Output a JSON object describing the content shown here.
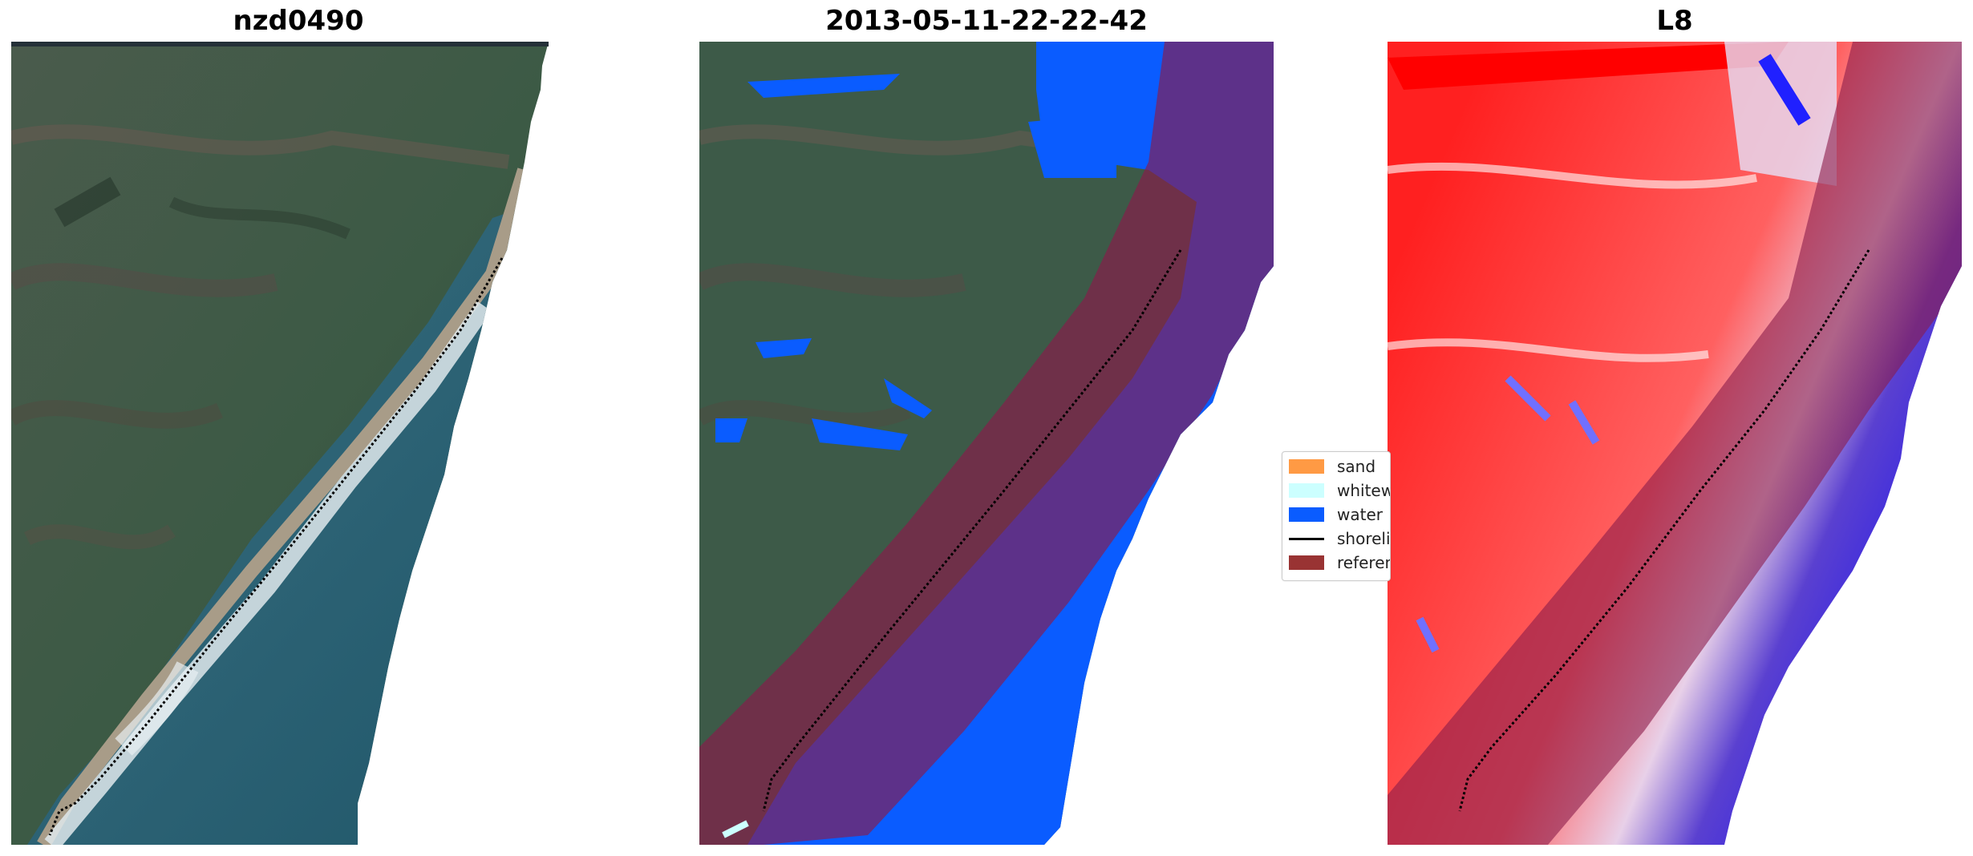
{
  "panels": [
    {
      "title": "nzd0490",
      "image": "satellite-rgb-image"
    },
    {
      "title": "2013-05-11-22-22-42",
      "image": "classified-image"
    },
    {
      "title": "L8",
      "image": "mndwi-image"
    }
  ],
  "legend": {
    "items": [
      {
        "label": "sand",
        "color": "#ff9a44",
        "kind": "patch"
      },
      {
        "label": "whitewater",
        "color": "#ccffff",
        "kind": "patch"
      },
      {
        "label": "water",
        "color": "#0a5cff",
        "kind": "patch"
      },
      {
        "label": "shoreline",
        "color": "#000000",
        "kind": "line"
      },
      {
        "label": "reference",
        "color": "#993333",
        "kind": "patch"
      }
    ]
  },
  "colors": {
    "land": "#3d5a48",
    "sea": "#2a5f73",
    "water_class": "#0a5cff",
    "reference_buffer": "#8a1a4a",
    "index_positive": "#ff0000",
    "index_negative": "#0000ff"
  }
}
